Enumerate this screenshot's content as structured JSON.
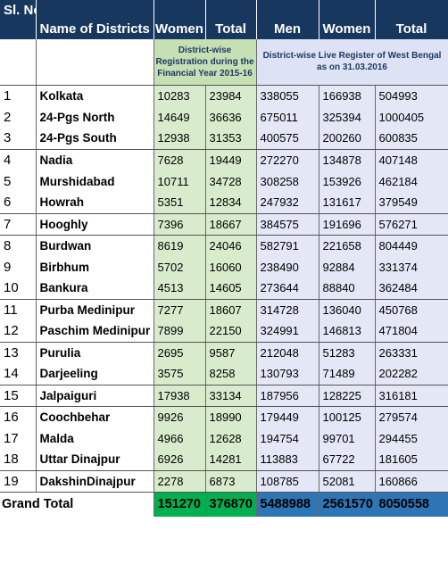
{
  "header": {
    "sl": "Sl. No.",
    "name": "Name of Districts",
    "women1": "Women",
    "total1": "Total",
    "men": "Men",
    "women2": "Women",
    "total2": "Total"
  },
  "subheader": {
    "registration": "District-wise Registration during the Financial Year 2015-16",
    "live_register": "District-wise Live Register of West Bengal as on 31.03.2016"
  },
  "rows": [
    {
      "sl": "1",
      "name": "Kolkata",
      "reg_women": "10283",
      "reg_total": "23984",
      "men": "338055",
      "women": "166938",
      "total": "504993"
    },
    {
      "sl": "2",
      "name": "24-Pgs North",
      "reg_women": "14649",
      "reg_total": "36636",
      "men": "675011",
      "women": "325394",
      "total": "1000405"
    },
    {
      "sl": "3",
      "name": "24-Pgs South",
      "reg_women": "12938",
      "reg_total": "31353",
      "men": "400575",
      "women": "200260",
      "total": "600835"
    },
    {
      "sl": "4",
      "name": "Nadia",
      "reg_women": "7628",
      "reg_total": "19449",
      "men": "272270",
      "women": "134878",
      "total": "407148"
    },
    {
      "sl": "5",
      "name": "Murshidabad",
      "reg_women": "10711",
      "reg_total": "34728",
      "men": "308258",
      "women": "153926",
      "total": "462184"
    },
    {
      "sl": "6",
      "name": "Howrah",
      "reg_women": "5351",
      "reg_total": "12834",
      "men": "247932",
      "women": "131617",
      "total": "379549"
    },
    {
      "sl": "7",
      "name": "Hooghly",
      "reg_women": "7396",
      "reg_total": "18667",
      "men": "384575",
      "women": "191696",
      "total": "576271"
    },
    {
      "sl": "8",
      "name": "Burdwan",
      "reg_women": "8619",
      "reg_total": "24046",
      "men": "582791",
      "women": "221658",
      "total": "804449"
    },
    {
      "sl": "9",
      "name": "Birbhum",
      "reg_women": "5702",
      "reg_total": "16060",
      "men": "238490",
      "women": "92884",
      "total": "331374"
    },
    {
      "sl": "10",
      "name": "Bankura",
      "reg_women": "4513",
      "reg_total": "14605",
      "men": "273644",
      "women": "88840",
      "total": "362484"
    },
    {
      "sl": "11",
      "name": "Purba Medinipur",
      "reg_women": "7277",
      "reg_total": "18607",
      "men": "314728",
      "women": "136040",
      "total": "450768"
    },
    {
      "sl": "12",
      "name": "Paschim Medinipur",
      "reg_women": "7899",
      "reg_total": "22150",
      "men": "324991",
      "women": "146813",
      "total": "471804"
    },
    {
      "sl": "13",
      "name": "Purulia",
      "reg_women": "2695",
      "reg_total": "9587",
      "men": "212048",
      "women": "51283",
      "total": "263331"
    },
    {
      "sl": "14",
      "name": "Darjeeling",
      "reg_women": "3575",
      "reg_total": "8258",
      "men": "130793",
      "women": "71489",
      "total": "202282"
    },
    {
      "sl": "15",
      "name": "Jalpaiguri",
      "reg_women": "17938",
      "reg_total": "33134",
      "men": "187956",
      "women": "128225",
      "total": "316181"
    },
    {
      "sl": "16",
      "name": "Coochbehar",
      "reg_women": "9926",
      "reg_total": "18990",
      "men": "179449",
      "women": "100125",
      "total": "279574"
    },
    {
      "sl": "17",
      "name": "Malda",
      "reg_women": "4966",
      "reg_total": "12628",
      "men": "194754",
      "women": "99701",
      "total": "294455"
    },
    {
      "sl": "18",
      "name": "Uttar Dinajpur",
      "reg_women": "6926",
      "reg_total": "14281",
      "men": "113883",
      "women": "67722",
      "total": "181605"
    },
    {
      "sl": "19",
      "name": "DakshinDinajpur",
      "reg_women": "2278",
      "reg_total": "6873",
      "men": "108785",
      "women": "52081",
      "total": "160866"
    }
  ],
  "grand_total": {
    "label": "Grand Total",
    "reg_women": "151270",
    "reg_total": "376870",
    "men": "5488988",
    "women": "2561570",
    "total": "8050558"
  },
  "colors": {
    "header_navy": "#17375e",
    "green_light": "#d9ebcd",
    "blue_light": "#e4e8f6",
    "green_total": "#00b050",
    "blue_total": "#2e75b6"
  }
}
